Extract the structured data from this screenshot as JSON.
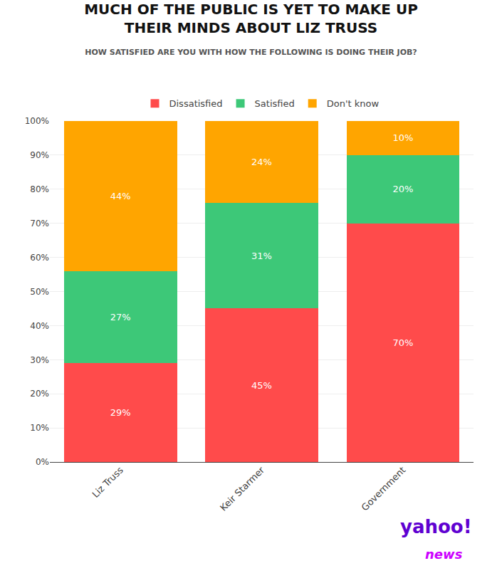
{
  "chart_data": {
    "type": "bar",
    "title": "MUCH OF THE PUBLIC IS YET TO MAKE UP\nTHEIR MINDS ABOUT LIZ TRUSS",
    "subtitle": "HOW SATISFIED ARE YOU WITH HOW THE FOLLOWING IS DOING THEIR JOB?",
    "categories": [
      "Liz Truss",
      "Keir Starmer",
      "Government"
    ],
    "series": [
      {
        "name": "Dissatisfied",
        "color": "#FF4B4B",
        "values": [
          29,
          45,
          70
        ],
        "value_labels": [
          "29%",
          "45%",
          "70%"
        ]
      },
      {
        "name": "Satisfied",
        "color": "#3DC878",
        "values": [
          27,
          31,
          20
        ],
        "value_labels": [
          "27%",
          "31%",
          "20%"
        ]
      },
      {
        "name": "Don't know",
        "color": "#FFA500",
        "values": [
          44,
          24,
          10
        ],
        "value_labels": [
          "44%",
          "24%",
          "10%"
        ]
      }
    ],
    "stacked": true,
    "data_labels": true,
    "ylim": [
      0,
      100
    ],
    "yticks": [
      {
        "value": 0,
        "label": "0%"
      },
      {
        "value": 10,
        "label": "10%"
      },
      {
        "value": 20,
        "label": "20%"
      },
      {
        "value": 30,
        "label": "30%"
      },
      {
        "value": 40,
        "label": "40%"
      },
      {
        "value": 50,
        "label": "50%"
      },
      {
        "value": 60,
        "label": "60%"
      },
      {
        "value": 70,
        "label": "70%"
      },
      {
        "value": 80,
        "label": "80%"
      },
      {
        "value": 90,
        "label": "90%"
      },
      {
        "value": 100,
        "label": "100%"
      }
    ],
    "grid": true,
    "legend": "top",
    "annotations": [
      {
        "text": "yahoo!",
        "color": "#5F01D1"
      },
      {
        "text": "news",
        "color": "#CC00FF"
      }
    ]
  }
}
